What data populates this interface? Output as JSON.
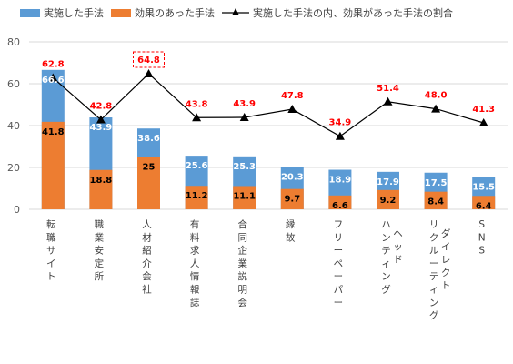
{
  "chart_data": {
    "type": "bar",
    "stacking": "overlay",
    "categories": [
      "転職サイト",
      "職業安定所",
      "人材紹介会社",
      "有料求人情報誌",
      "合同企業説明会",
      "縁故",
      "フリーペーパー",
      "ハンティング",
      "リクルーティング",
      "SNS"
    ],
    "x_label_columns": [
      [
        "転職サイト"
      ],
      [
        "職業安定所"
      ],
      [
        "人材紹介会社"
      ],
      [
        "有料求人情報誌"
      ],
      [
        "合同企業説明会"
      ],
      [
        "縁故"
      ],
      [
        "フリーペーパー"
      ],
      [
        "ハンティング",
        "ヘッド"
      ],
      [
        "リクルーティング",
        "ダイレクト"
      ],
      [
        "SNS"
      ]
    ],
    "series": [
      {
        "name": "実施した手法",
        "type": "bar",
        "color": "#5b9bd5",
        "values": [
          66.6,
          43.9,
          38.6,
          25.6,
          25.3,
          20.3,
          18.9,
          17.9,
          17.5,
          15.5
        ]
      },
      {
        "name": "効果のあった手法",
        "type": "bar",
        "color": "#ed7d31",
        "values": [
          41.8,
          18.8,
          25,
          11.2,
          11.1,
          9.7,
          6.6,
          9.2,
          8.4,
          6.4
        ]
      },
      {
        "name": "実施した手法の内、効果があった手法の割合",
        "type": "line",
        "color": "#000000",
        "marker": "triangle",
        "label_color": "#ff0000",
        "values": [
          62.8,
          42.8,
          64.8,
          43.8,
          43.9,
          47.8,
          34.9,
          51.4,
          48.0,
          41.3
        ]
      }
    ],
    "blue_labels": [
      "66.6",
      "43.9",
      "38.6",
      "25.6",
      "25.3",
      "20.3",
      "18.9",
      "17.9",
      "17.5",
      "15.5"
    ],
    "orange_labels": [
      "41.8",
      "18.8",
      "25",
      "11.2",
      "11.1",
      "9.7",
      "6.6",
      "9.2",
      "8.4",
      "6.4"
    ],
    "line_labels": [
      "62.8",
      "42.8",
      "64.8",
      "43.8",
      "43.9",
      "47.8",
      "34.9",
      "51.4",
      "48.0",
      "41.3"
    ],
    "highlighted_point": "人材紹介会社",
    "ylim": [
      0,
      80
    ],
    "yticks": [
      "0",
      "20",
      "40",
      "60",
      "80"
    ],
    "ytick_values": [
      0,
      20,
      40,
      60,
      80
    ],
    "grid": true,
    "legend_position": "top"
  }
}
